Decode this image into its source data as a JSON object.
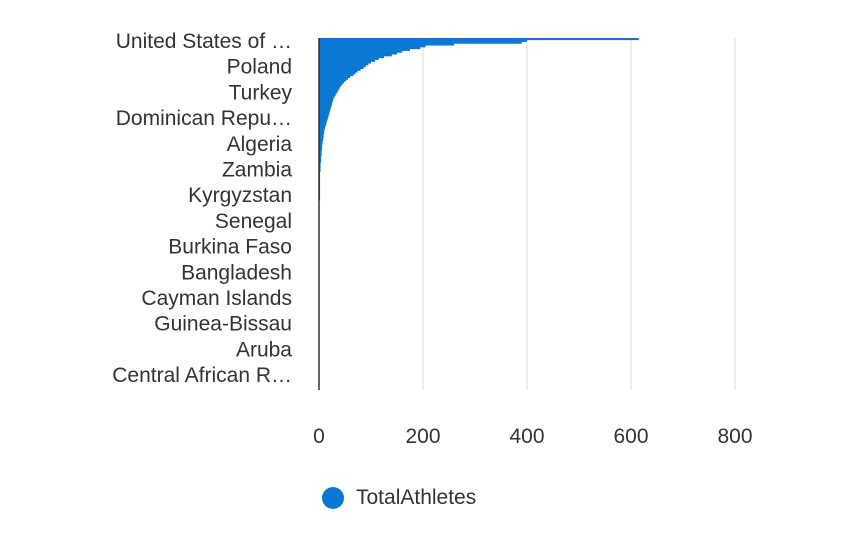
{
  "chart_data": {
    "type": "bar",
    "orientation": "horizontal",
    "title": "",
    "xlabel": "",
    "ylabel": "",
    "xlim": [
      0,
      800
    ],
    "x_ticks": [
      "0",
      "200",
      "400",
      "600",
      "800"
    ],
    "grid": true,
    "legend": "bottom",
    "visible_category_labels": [
      "United States of …",
      "Poland",
      "Turkey",
      "Dominican Repu…",
      "Algeria",
      "Zambia",
      "Kyrgyzstan",
      "Senegal",
      "Burkina Faso",
      "Bangladesh",
      "Cayman Islands",
      "Guinea-Bissau",
      "Aruba",
      "Central African R…"
    ],
    "series": [
      {
        "name": "TotalAthletes",
        "color": "#0a78d2",
        "values": [
          615,
          400,
          390,
          260,
          205,
          195,
          175,
          160,
          150,
          140,
          125,
          115,
          108,
          100,
          95,
          90,
          86,
          80,
          74,
          70,
          66,
          60,
          56,
          52,
          48,
          45,
          42,
          40,
          38,
          36,
          34,
          32,
          30,
          28,
          27,
          26,
          25,
          24,
          23,
          22,
          21,
          20,
          19,
          18,
          17,
          16,
          15,
          14,
          13,
          12,
          11,
          10,
          10,
          9,
          9,
          8,
          8,
          7,
          7,
          6,
          6,
          6,
          5,
          5,
          5,
          4,
          4,
          4,
          4,
          3,
          3,
          3,
          3,
          3,
          2,
          2,
          2,
          2,
          2,
          2,
          2,
          2,
          2,
          2,
          2,
          2,
          2,
          2,
          2,
          2,
          1,
          1,
          1,
          1,
          1,
          1,
          1,
          1,
          1,
          1,
          1,
          1,
          1,
          1,
          1,
          1,
          1,
          1,
          1,
          1,
          1,
          1,
          1,
          1,
          1,
          1,
          1,
          1,
          1,
          1,
          1,
          1,
          1,
          1,
          1,
          1,
          1,
          1,
          1,
          1,
          1,
          1,
          1,
          1,
          1,
          1,
          1,
          1,
          1,
          1,
          1,
          1,
          1,
          1,
          1,
          1,
          1,
          1,
          1,
          1,
          1,
          1,
          1,
          1,
          1,
          1,
          1,
          1,
          1,
          1,
          1,
          1,
          1,
          1,
          1,
          1,
          1,
          1,
          1,
          1,
          1,
          1,
          1,
          1,
          1,
          1,
          1,
          1,
          1,
          1,
          1,
          1,
          1,
          1,
          1,
          1,
          1,
          1,
          1,
          1,
          1,
          1,
          1,
          1,
          1
        ]
      }
    ]
  },
  "legend": {
    "label": "TotalAthletes",
    "color": "#0a78d2"
  }
}
